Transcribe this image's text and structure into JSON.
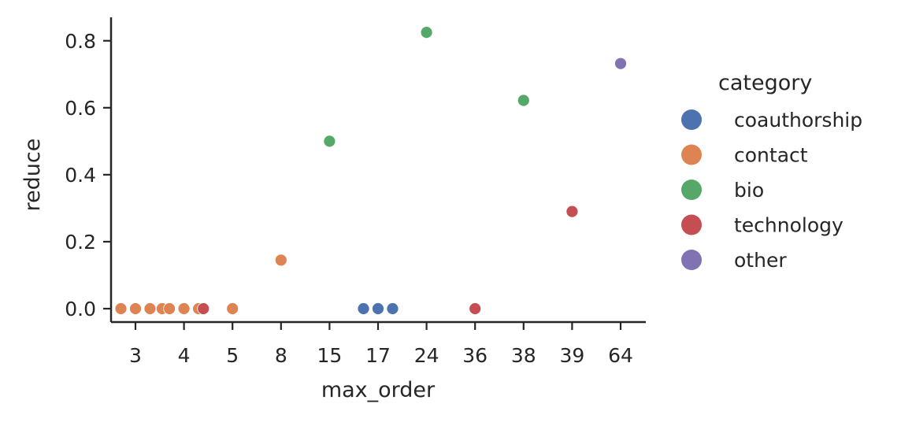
{
  "chart_data": {
    "type": "scatter",
    "title": "",
    "xlabel": "max_order",
    "ylabel": "reduce",
    "x_categories": [
      "3",
      "4",
      "5",
      "8",
      "15",
      "17",
      "24",
      "36",
      "38",
      "39",
      "64"
    ],
    "y_ticks": [
      "0.0",
      "0.2",
      "0.4",
      "0.6",
      "0.8"
    ],
    "ylim": [
      -0.04,
      0.87
    ],
    "grid": false,
    "legend": {
      "title": "category",
      "placement": "right",
      "entries": [
        {
          "name": "coauthorship",
          "color": "#4c72b0"
        },
        {
          "name": "contact",
          "color": "#dd8452"
        },
        {
          "name": "bio",
          "color": "#55a868"
        },
        {
          "name": "technology",
          "color": "#c44e52"
        },
        {
          "name": "other",
          "color": "#8172b3"
        }
      ]
    },
    "series": [
      {
        "name": "contact",
        "color": "#dd8452",
        "points": [
          {
            "x": "3",
            "offset": -0.3,
            "y": 0.0
          },
          {
            "x": "3",
            "offset": 0.0,
            "y": 0.0
          },
          {
            "x": "3",
            "offset": 0.3,
            "y": 0.0
          },
          {
            "x": "4",
            "offset": -0.45,
            "y": 0.0
          },
          {
            "x": "4",
            "offset": -0.3,
            "y": 0.0
          },
          {
            "x": "4",
            "offset": 0.0,
            "y": 0.0
          },
          {
            "x": "4",
            "offset": 0.3,
            "y": 0.0
          },
          {
            "x": "5",
            "offset": 0.0,
            "y": 0.0
          },
          {
            "x": "8",
            "offset": 0.0,
            "y": 0.145
          }
        ]
      },
      {
        "name": "technology",
        "color": "#c44e52",
        "points": [
          {
            "x": "4",
            "offset": 0.4,
            "y": 0.0
          },
          {
            "x": "36",
            "offset": 0.0,
            "y": 0.0
          },
          {
            "x": "39",
            "offset": 0.0,
            "y": 0.29
          }
        ]
      },
      {
        "name": "coauthorship",
        "color": "#4c72b0",
        "points": [
          {
            "x": "17",
            "offset": -0.3,
            "y": 0.0
          },
          {
            "x": "17",
            "offset": 0.0,
            "y": 0.0
          },
          {
            "x": "17",
            "offset": 0.3,
            "y": 0.0
          }
        ]
      },
      {
        "name": "bio",
        "color": "#55a868",
        "points": [
          {
            "x": "15",
            "offset": 0.0,
            "y": 0.5
          },
          {
            "x": "24",
            "offset": 0.0,
            "y": 0.825
          },
          {
            "x": "38",
            "offset": 0.0,
            "y": 0.622
          }
        ]
      },
      {
        "name": "other",
        "color": "#8172b3",
        "points": [
          {
            "x": "64",
            "offset": 0.0,
            "y": 0.732
          }
        ]
      }
    ]
  }
}
